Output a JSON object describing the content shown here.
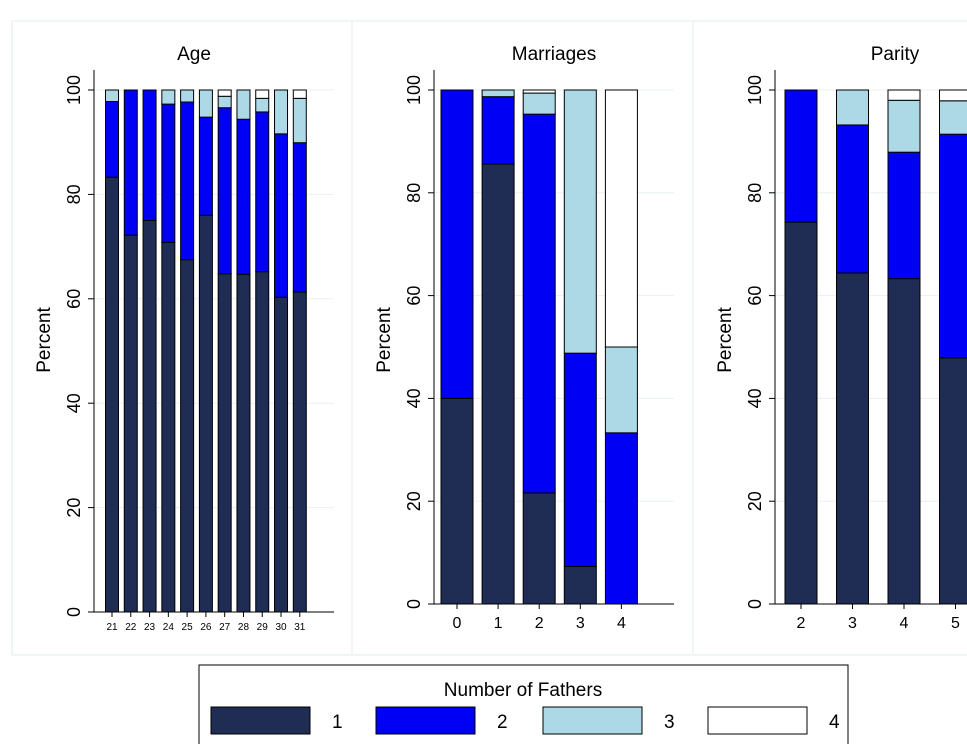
{
  "colors": {
    "1": "#1f2d54",
    "2": "#0000f5",
    "3": "#add8e6",
    "4": "#ffffff",
    "grid": "#eaf0f3",
    "panel_border": "#e6ebee"
  },
  "legend": {
    "title": "Number of Fathers",
    "items": [
      "1",
      "2",
      "3",
      "4"
    ]
  },
  "chart_data": [
    {
      "type": "bar",
      "stacked": true,
      "title": "Age",
      "ylabel": "Percent",
      "ylim": [
        0,
        100
      ],
      "yticks": [
        "0",
        "20",
        "40",
        "60",
        "80",
        "100"
      ],
      "grid": true,
      "categories": [
        "21",
        "22",
        "23",
        "24",
        "25",
        "26",
        "27",
        "28",
        "29",
        "30",
        "31"
      ],
      "series": [
        {
          "name": "1",
          "values": [
            83.3,
            72.2,
            75.0,
            70.8,
            67.5,
            76.0,
            64.8,
            64.7,
            65.2,
            60.3,
            61.3
          ]
        },
        {
          "name": "2",
          "values": [
            14.5,
            27.8,
            25.0,
            26.5,
            30.2,
            18.8,
            31.8,
            29.7,
            30.6,
            31.3,
            28.6
          ]
        },
        {
          "name": "3",
          "values": [
            2.2,
            0.0,
            0.0,
            2.7,
            2.3,
            5.2,
            2.2,
            5.6,
            2.6,
            8.4,
            8.5
          ]
        },
        {
          "name": "4",
          "values": [
            0.0,
            0.0,
            0.0,
            0.0,
            0.0,
            0.0,
            1.2,
            0.0,
            1.6,
            0.0,
            1.6
          ]
        }
      ]
    },
    {
      "type": "bar",
      "stacked": true,
      "title": "Marriages",
      "ylabel": "Percent",
      "ylim": [
        0,
        100
      ],
      "yticks": [
        "0",
        "20",
        "40",
        "60",
        "80",
        "100"
      ],
      "grid": true,
      "categories": [
        "0",
        "1",
        "2",
        "3",
        "4"
      ],
      "series": [
        {
          "name": "1",
          "values": [
            40.0,
            85.6,
            21.6,
            7.3,
            0.0
          ]
        },
        {
          "name": "2",
          "values": [
            60.0,
            13.1,
            73.7,
            41.5,
            33.3
          ]
        },
        {
          "name": "3",
          "values": [
            0.0,
            1.3,
            4.1,
            51.2,
            16.7
          ]
        },
        {
          "name": "4",
          "values": [
            0.0,
            0.0,
            0.6,
            0.0,
            50.0
          ]
        }
      ]
    },
    {
      "type": "bar",
      "stacked": true,
      "title": "Parity",
      "ylabel": "Percent",
      "ylim": [
        0,
        100
      ],
      "yticks": [
        "0",
        "20",
        "40",
        "60",
        "80",
        "100"
      ],
      "grid": true,
      "categories": [
        "2",
        "3",
        "4",
        "5"
      ],
      "series": [
        {
          "name": "1",
          "values": [
            74.3,
            64.4,
            63.3,
            47.9
          ]
        },
        {
          "name": "2",
          "values": [
            25.7,
            28.8,
            24.6,
            43.5
          ]
        },
        {
          "name": "3",
          "values": [
            0.0,
            6.8,
            10.1,
            6.5
          ]
        },
        {
          "name": "4",
          "values": [
            0.0,
            0.0,
            2.0,
            2.1
          ]
        }
      ]
    }
  ]
}
